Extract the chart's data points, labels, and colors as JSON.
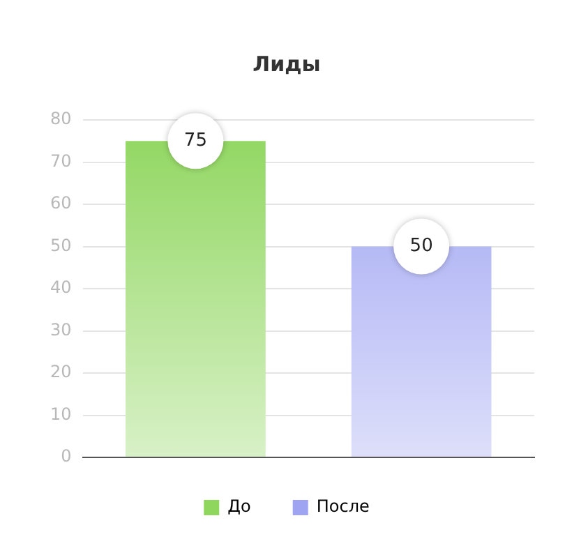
{
  "chart_data": {
    "type": "bar",
    "title": "Лиды",
    "categories": [
      null,
      null
    ],
    "series": [
      {
        "name": "До",
        "color": "#8fd65e",
        "values": [
          75,
          null
        ]
      },
      {
        "name": "После",
        "color": "#9ea3f2",
        "values": [
          null,
          50
        ]
      }
    ],
    "ylim": [
      0,
      80
    ],
    "yticks": [
      0,
      10,
      20,
      30,
      40,
      50,
      60,
      70,
      80
    ],
    "grid": "y",
    "legend": "bottom",
    "data_labels": true
  }
}
